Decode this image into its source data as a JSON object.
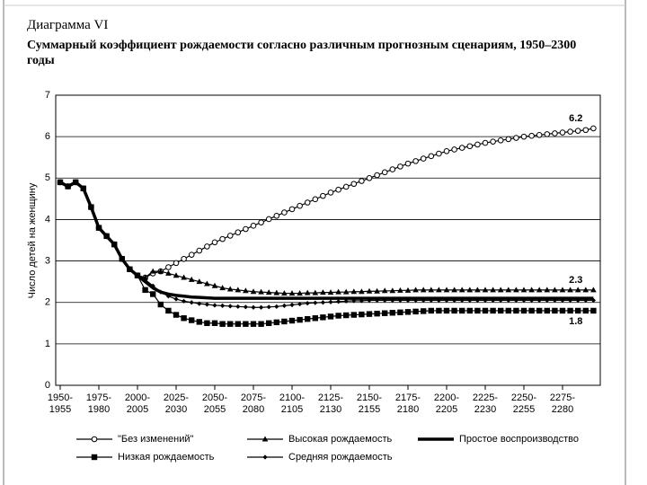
{
  "chart_data": {
    "type": "line",
    "title": "Диаграмма VI",
    "subtitle": "Суммарный коэффициент рождаемости согласно различным прогнозным сценариям, 1950–2300 годы",
    "y_label": "Число детей на женщину",
    "ylim": [
      0,
      7
    ],
    "yticks": [
      0,
      1,
      2,
      3,
      4,
      5,
      6,
      7
    ],
    "grid": true,
    "categories": [
      "1950-1955",
      null,
      null,
      null,
      null,
      "1975-1980",
      null,
      null,
      null,
      null,
      "2000-2005",
      null,
      null,
      null,
      null,
      "2025-2030",
      null,
      null,
      null,
      null,
      "2050-2055",
      null,
      null,
      null,
      null,
      "2075-2080",
      null,
      null,
      null,
      null,
      "2100-2105",
      null,
      null,
      null,
      null,
      "2125-2130",
      null,
      null,
      null,
      null,
      "2150-2155",
      null,
      null,
      null,
      null,
      "2175-2180",
      null,
      null,
      null,
      null,
      "2200-2205",
      null,
      null,
      null,
      null,
      "2225-2230",
      null,
      null,
      null,
      null,
      "2250-2255",
      null,
      null,
      null,
      null,
      "2275-2280",
      null,
      null,
      null,
      null
    ],
    "series": [
      {
        "name": "\"Без изменений\"",
        "color": "#000000",
        "marker": "circle-open",
        "end_label": "6.2",
        "values": [
          4.9,
          4.8,
          4.9,
          4.75,
          4.3,
          3.8,
          3.6,
          3.4,
          3.05,
          2.8,
          2.65,
          2.6,
          2.7,
          2.75,
          2.85,
          2.95,
          3.05,
          3.15,
          3.25,
          3.35,
          3.45,
          3.53,
          3.61,
          3.69,
          3.77,
          3.85,
          3.93,
          4.01,
          4.09,
          4.17,
          4.25,
          4.33,
          4.41,
          4.49,
          4.57,
          4.65,
          4.72,
          4.79,
          4.86,
          4.93,
          5.0,
          5.07,
          5.14,
          5.21,
          5.28,
          5.35,
          5.41,
          5.47,
          5.53,
          5.59,
          5.65,
          5.69,
          5.73,
          5.77,
          5.81,
          5.85,
          5.88,
          5.91,
          5.94,
          5.97,
          6.0,
          6.02,
          6.04,
          6.06,
          6.08,
          6.1,
          6.12,
          6.14,
          6.16,
          6.2
        ]
      },
      {
        "name": "Высокая рождаемость",
        "color": "#000000",
        "marker": "triangle",
        "end_label": "2.3",
        "values": [
          4.9,
          4.8,
          4.9,
          4.75,
          4.3,
          3.8,
          3.6,
          3.4,
          3.05,
          2.8,
          2.65,
          2.6,
          2.75,
          2.75,
          2.7,
          2.65,
          2.6,
          2.55,
          2.5,
          2.45,
          2.4,
          2.35,
          2.32,
          2.3,
          2.28,
          2.26,
          2.25,
          2.24,
          2.23,
          2.22,
          2.22,
          2.22,
          2.23,
          2.23,
          2.24,
          2.24,
          2.25,
          2.25,
          2.26,
          2.26,
          2.27,
          2.27,
          2.28,
          2.28,
          2.29,
          2.29,
          2.3,
          2.3,
          2.3,
          2.3,
          2.3,
          2.3,
          2.3,
          2.3,
          2.3,
          2.3,
          2.3,
          2.3,
          2.3,
          2.3,
          2.3,
          2.3,
          2.3,
          2.3,
          2.3,
          2.3,
          2.3,
          2.3,
          2.3,
          2.3
        ]
      },
      {
        "name": "Простое воспроизводство",
        "color": "#000000",
        "marker": "none",
        "values": [
          4.9,
          4.8,
          4.9,
          4.75,
          4.3,
          3.8,
          3.6,
          3.4,
          3.05,
          2.8,
          2.65,
          2.5,
          2.35,
          2.25,
          2.2,
          2.17,
          2.15,
          2.13,
          2.12,
          2.11,
          2.1,
          2.1,
          2.1,
          2.1,
          2.1,
          2.1,
          2.1,
          2.1,
          2.1,
          2.1,
          2.1,
          2.1,
          2.1,
          2.1,
          2.1,
          2.1,
          2.1,
          2.1,
          2.1,
          2.1,
          2.1,
          2.1,
          2.1,
          2.1,
          2.1,
          2.1,
          2.1,
          2.1,
          2.1,
          2.1,
          2.1,
          2.1,
          2.1,
          2.1,
          2.1,
          2.1,
          2.1,
          2.1,
          2.1,
          2.1,
          2.1,
          2.1,
          2.1,
          2.1,
          2.1,
          2.1,
          2.1,
          2.1,
          2.1,
          2.1
        ]
      },
      {
        "name": "Низкая рождаемость",
        "color": "#000000",
        "marker": "square",
        "end_label": "1.8",
        "values": [
          4.9,
          4.8,
          4.9,
          4.75,
          4.3,
          3.8,
          3.6,
          3.4,
          3.05,
          2.8,
          2.65,
          2.3,
          2.2,
          1.95,
          1.8,
          1.7,
          1.62,
          1.57,
          1.53,
          1.5,
          1.5,
          1.48,
          1.48,
          1.48,
          1.48,
          1.48,
          1.48,
          1.5,
          1.52,
          1.54,
          1.56,
          1.58,
          1.6,
          1.62,
          1.64,
          1.66,
          1.68,
          1.69,
          1.7,
          1.71,
          1.72,
          1.73,
          1.74,
          1.75,
          1.76,
          1.77,
          1.78,
          1.79,
          1.8,
          1.8,
          1.8,
          1.8,
          1.8,
          1.8,
          1.8,
          1.8,
          1.8,
          1.8,
          1.8,
          1.8,
          1.8,
          1.8,
          1.8,
          1.8,
          1.8,
          1.8,
          1.8,
          1.8,
          1.8,
          1.8
        ]
      },
      {
        "name": "Средняя рождаемость",
        "color": "#000000",
        "marker": "diamond",
        "values": [
          4.9,
          4.8,
          4.9,
          4.75,
          4.3,
          3.8,
          3.6,
          3.4,
          3.05,
          2.8,
          2.65,
          2.55,
          2.4,
          2.25,
          2.15,
          2.08,
          2.03,
          2.0,
          1.97,
          1.95,
          1.93,
          1.92,
          1.91,
          1.9,
          1.89,
          1.88,
          1.88,
          1.89,
          1.9,
          1.92,
          1.94,
          1.96,
          1.98,
          1.99,
          2.0,
          2.01,
          2.02,
          2.03,
          2.04,
          2.04,
          2.05,
          2.05,
          2.05,
          2.05,
          2.05,
          2.05,
          2.05,
          2.05,
          2.05,
          2.05,
          2.05,
          2.05,
          2.05,
          2.05,
          2.05,
          2.05,
          2.05,
          2.05,
          2.05,
          2.05,
          2.05,
          2.05,
          2.05,
          2.05,
          2.05,
          2.05,
          2.05,
          2.05,
          2.05,
          2.05
        ]
      }
    ]
  }
}
